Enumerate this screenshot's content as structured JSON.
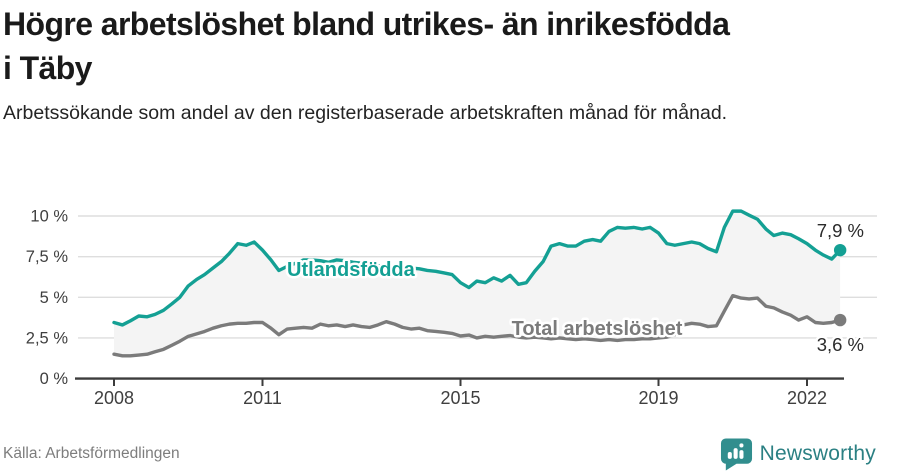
{
  "header": {
    "title": "Högre arbetslöshet bland utrikes- än inrikesfödda i Täby",
    "subtitle": "Arbetssökande som andel av den registerbaserade arbetskraften månad för månad."
  },
  "footer": {
    "source": "Källa: Arbetsförmedlingen",
    "brand": "Newsworthy",
    "brand_icon": "bar-chart-speech-bubble-icon"
  },
  "colors": {
    "accent_teal": "#14a094",
    "series_gray": "#7b7b7b",
    "fill_between": "#f4f4f4",
    "gridline": "#dedede",
    "axis": "#3c3c3c",
    "tick_label": "#3f3f3f",
    "annotation_text": "#2b2b2b",
    "title_text": "#1a1a1a",
    "source_text": "#7d7d7d",
    "brand_teal": "#2b8083"
  },
  "chart_data": {
    "type": "line",
    "title": "Högre arbetslöshet bland utrikes- än inrikesfödda i Täby",
    "subtitle": "Arbetssökande som andel av den registerbaserade arbetskraften månad för månad.",
    "x_unit": "year (decimal, ~2-month samples)",
    "grid": "horizontal",
    "fill_between_series": true,
    "ylim": [
      0,
      10.6
    ],
    "xlim": [
      2008,
      2022.67
    ],
    "yticks": [
      {
        "value": 0,
        "label": "0 %"
      },
      {
        "value": 2.5,
        "label": "2,5 %"
      },
      {
        "value": 5,
        "label": "5 %"
      },
      {
        "value": 7.5,
        "label": "7,5 %"
      },
      {
        "value": 10,
        "label": "10 %"
      }
    ],
    "xticks": [
      {
        "value": 2008,
        "label": "2008"
      },
      {
        "value": 2011,
        "label": "2011"
      },
      {
        "value": 2015,
        "label": "2015"
      },
      {
        "value": 2019,
        "label": "2019"
      },
      {
        "value": 2022,
        "label": "2022"
      }
    ],
    "x": [
      2008,
      2008.17,
      2008.33,
      2008.5,
      2008.67,
      2008.83,
      2009,
      2009.17,
      2009.33,
      2009.5,
      2009.67,
      2009.83,
      2010,
      2010.17,
      2010.33,
      2010.5,
      2010.67,
      2010.83,
      2011,
      2011.17,
      2011.33,
      2011.5,
      2011.67,
      2011.83,
      2012,
      2012.17,
      2012.33,
      2012.5,
      2012.67,
      2012.83,
      2013,
      2013.17,
      2013.33,
      2013.5,
      2013.67,
      2013.83,
      2014,
      2014.17,
      2014.33,
      2014.5,
      2014.67,
      2014.83,
      2015,
      2015.17,
      2015.33,
      2015.5,
      2015.67,
      2015.83,
      2016,
      2016.17,
      2016.33,
      2016.5,
      2016.67,
      2016.83,
      2017,
      2017.17,
      2017.33,
      2017.5,
      2017.67,
      2017.83,
      2018,
      2018.17,
      2018.33,
      2018.5,
      2018.67,
      2018.83,
      2019,
      2019.17,
      2019.33,
      2019.5,
      2019.67,
      2019.83,
      2020,
      2020.17,
      2020.33,
      2020.5,
      2020.67,
      2020.83,
      2021,
      2021.17,
      2021.33,
      2021.5,
      2021.67,
      2021.83,
      2022,
      2022.17,
      2022.33,
      2022.5,
      2022.67
    ],
    "series": [
      {
        "name": "Utlandsfödda",
        "color": "#14a094",
        "end_value_label": "7,9 %",
        "values": [
          3.45,
          3.3,
          3.55,
          3.85,
          3.8,
          3.95,
          4.2,
          4.6,
          5.0,
          5.7,
          6.1,
          6.4,
          6.8,
          7.2,
          7.7,
          8.3,
          8.2,
          8.4,
          7.9,
          7.3,
          6.65,
          6.9,
          7.1,
          7.3,
          7.3,
          7.25,
          7.15,
          7.3,
          7.25,
          7.15,
          7.1,
          7.05,
          6.95,
          6.9,
          6.85,
          6.8,
          6.8,
          6.75,
          6.65,
          6.6,
          6.5,
          6.4,
          5.9,
          5.6,
          6.0,
          5.9,
          6.2,
          6.0,
          6.35,
          5.8,
          5.9,
          6.6,
          7.2,
          8.15,
          8.3,
          8.15,
          8.15,
          8.45,
          8.55,
          8.45,
          9.05,
          9.3,
          9.25,
          9.3,
          9.2,
          9.3,
          8.95,
          8.3,
          8.2,
          8.3,
          8.4,
          8.3,
          8.0,
          7.8,
          9.3,
          10.3,
          10.3,
          10.05,
          9.8,
          9.2,
          8.8,
          8.95,
          8.85,
          8.6,
          8.3,
          7.9,
          7.6,
          7.35,
          7.9
        ]
      },
      {
        "name": "Total arbetslöshet",
        "color": "#7b7b7b",
        "end_value_label": "3,6 %",
        "values": [
          1.5,
          1.4,
          1.4,
          1.45,
          1.5,
          1.65,
          1.8,
          2.05,
          2.3,
          2.6,
          2.75,
          2.9,
          3.1,
          3.25,
          3.35,
          3.4,
          3.4,
          3.45,
          3.45,
          3.1,
          2.7,
          3.05,
          3.1,
          3.15,
          3.1,
          3.35,
          3.25,
          3.3,
          3.2,
          3.3,
          3.2,
          3.15,
          3.3,
          3.5,
          3.35,
          3.15,
          3.05,
          3.1,
          2.95,
          2.9,
          2.85,
          2.78,
          2.62,
          2.68,
          2.5,
          2.6,
          2.55,
          2.6,
          2.65,
          2.55,
          2.5,
          2.55,
          2.5,
          2.45,
          2.5,
          2.45,
          2.4,
          2.45,
          2.4,
          2.35,
          2.4,
          2.35,
          2.4,
          2.4,
          2.45,
          2.45,
          2.5,
          2.55,
          2.7,
          3.3,
          3.4,
          3.35,
          3.2,
          3.25,
          4.15,
          5.1,
          4.95,
          4.9,
          4.95,
          4.45,
          4.35,
          4.1,
          3.9,
          3.6,
          3.8,
          3.45,
          3.4,
          3.45,
          3.6
        ]
      }
    ]
  }
}
